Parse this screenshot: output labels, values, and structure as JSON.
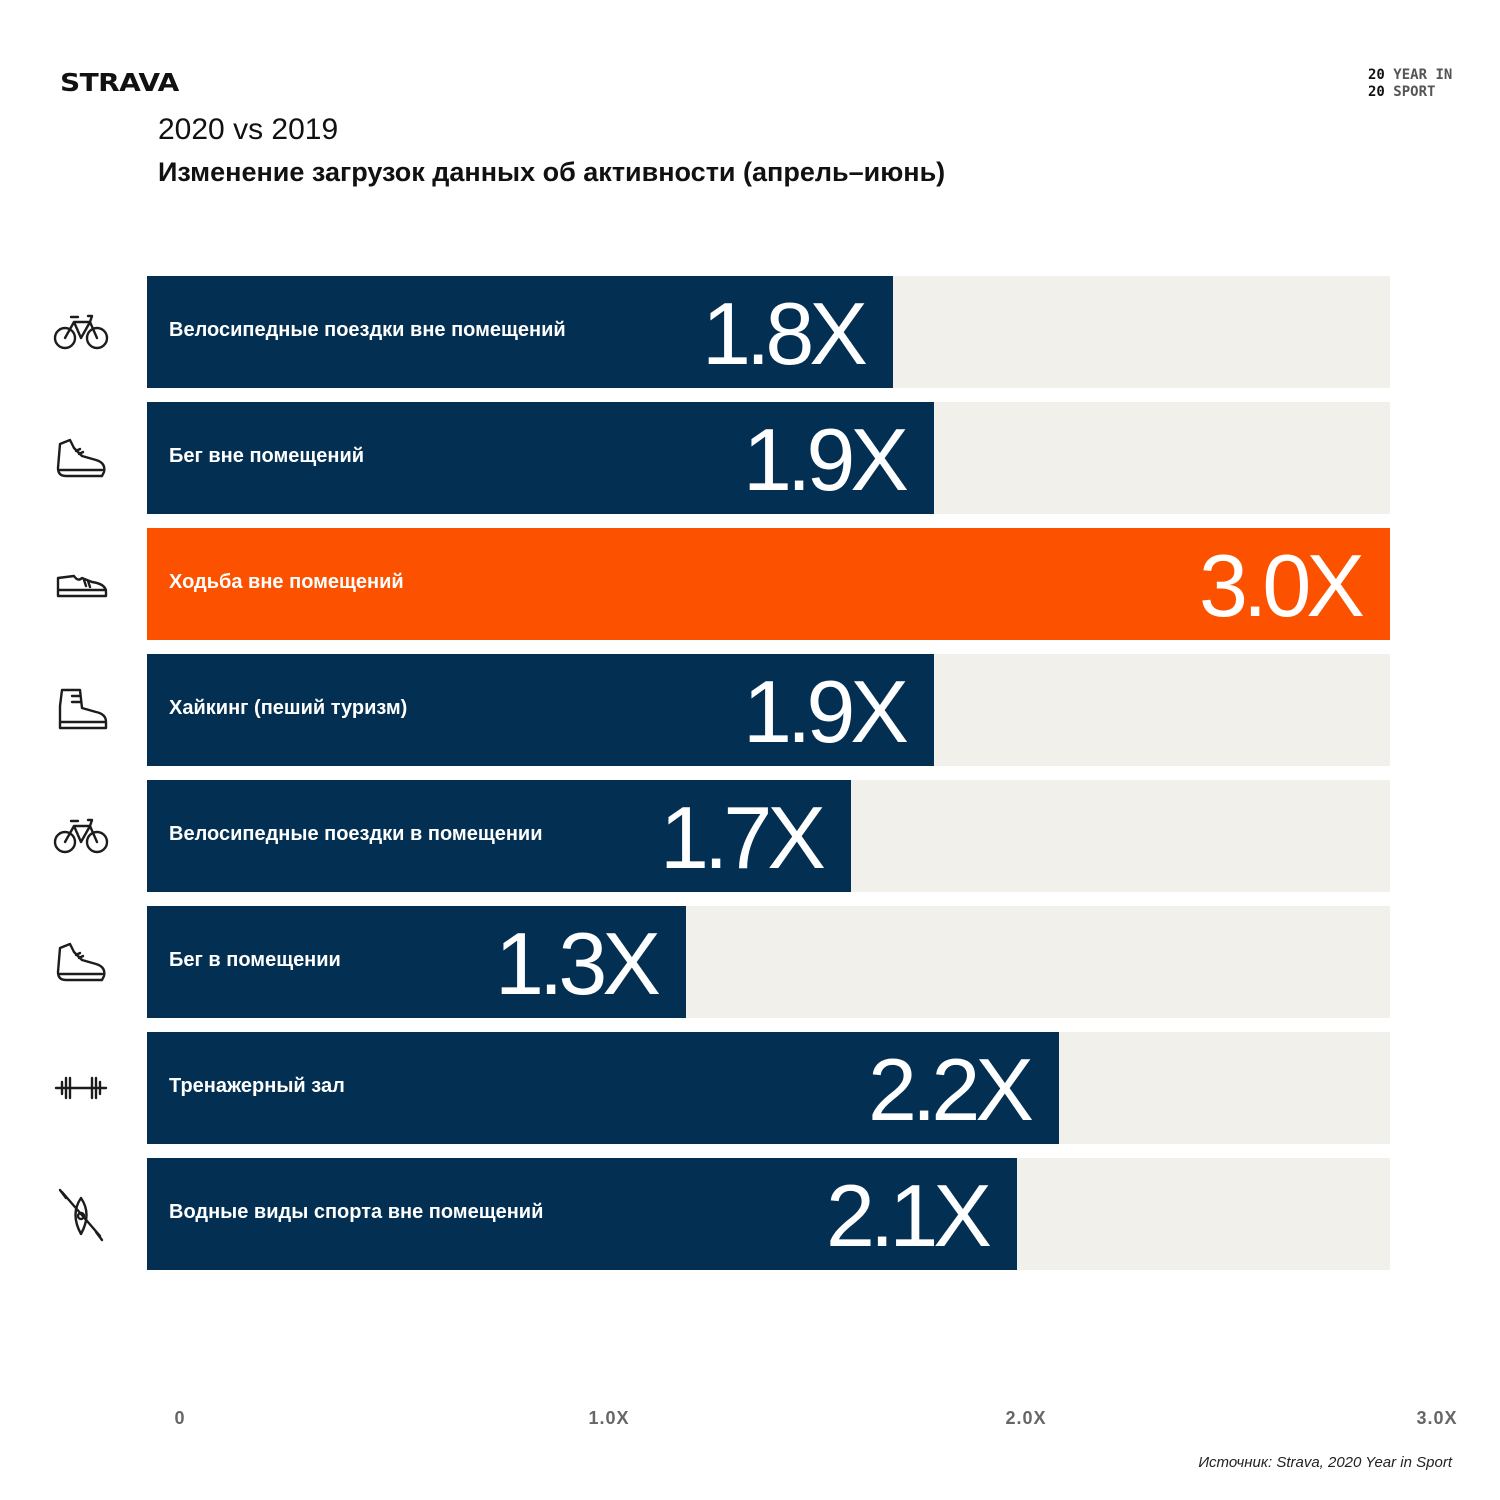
{
  "brand": {
    "logo": "STRAVA",
    "badge_line1_num": "20",
    "badge_line1_text": "YEAR IN",
    "badge_line2_num": "20",
    "badge_line2_text": "SPORT"
  },
  "subtitle": "2020 vs 2019",
  "title": "Изменение загрузок данных об активности (апрель–июнь)",
  "source": "Источник: Strava, 2020 Year in Sport",
  "colors": {
    "bar": "#022f52",
    "highlight": "#fc5200",
    "track": "#f1f0ea"
  },
  "chart_data": {
    "type": "bar",
    "orientation": "horizontal",
    "categories": [
      "Велосипедные поездки вне помещений",
      "Бег вне помещений",
      "Ходьба вне помещений",
      "Хайкинг (пеший туризм)",
      "Велосипедные поездки в помещении",
      "Бег в помещении",
      "Тренажерный зал",
      "Водные виды спорта вне помещений"
    ],
    "values": [
      1.8,
      1.9,
      3.0,
      1.9,
      1.7,
      1.3,
      2.2,
      2.1
    ],
    "value_labels": [
      "1.8X",
      "1.9X",
      "3.0X",
      "1.9X",
      "1.7X",
      "1.3X",
      "2.2X",
      "2.1X"
    ],
    "icons": [
      "bike-icon",
      "running-shoe-icon",
      "walking-shoe-icon",
      "hiking-boot-icon",
      "bike-icon",
      "running-shoe-icon",
      "dumbbell-icon",
      "kayak-icon"
    ],
    "highlight_index": 2,
    "xlim": [
      0,
      3.0
    ],
    "xticks": [
      "0",
      "1.0X",
      "2.0X",
      "3.0X"
    ],
    "grid": false
  }
}
